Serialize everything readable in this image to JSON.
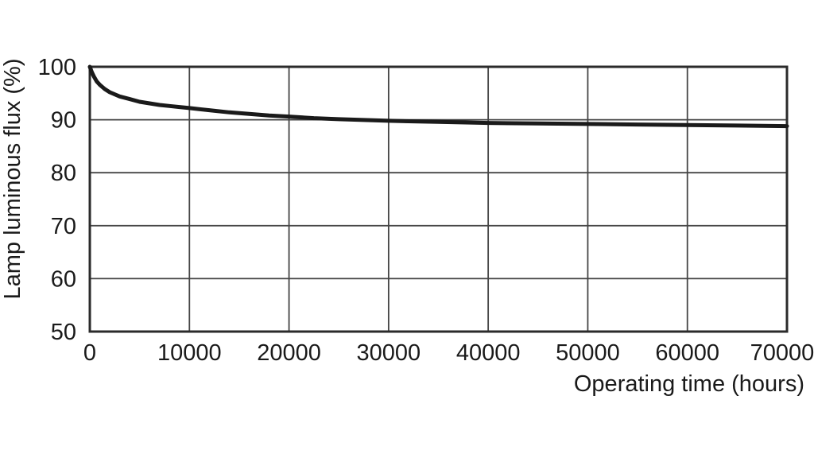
{
  "chart_data": {
    "type": "line",
    "title": "",
    "xlabel": "Operating time (hours)",
    "ylabel": "Lamp luminous flux (%)",
    "xlim": [
      0,
      70000
    ],
    "ylim": [
      50,
      100
    ],
    "x_ticks": [
      0,
      10000,
      20000,
      30000,
      40000,
      50000,
      60000,
      70000
    ],
    "x_tick_labels": [
      "0",
      "10000",
      "20000",
      "30000",
      "40000",
      "50000",
      "60000",
      "70000"
    ],
    "y_ticks": [
      50,
      60,
      70,
      80,
      90,
      100
    ],
    "y_tick_labels": [
      "50",
      "60",
      "70",
      "80",
      "90",
      "100"
    ],
    "grid": true,
    "legend": false,
    "series": [
      {
        "name": "Lamp luminous flux",
        "x": [
          0,
          200,
          400,
          700,
          1000,
          1500,
          2000,
          3000,
          4000,
          5000,
          6000,
          7000,
          8000,
          9000,
          10000,
          12000,
          14000,
          16000,
          18000,
          20000,
          22500,
          25000,
          27500,
          30000,
          32500,
          35000,
          40000,
          45000,
          50000,
          55000,
          60000,
          65000,
          70000
        ],
        "y": [
          100,
          99.0,
          98.2,
          97.2,
          96.6,
          95.8,
          95.2,
          94.4,
          93.9,
          93.4,
          93.1,
          92.8,
          92.6,
          92.4,
          92.2,
          91.8,
          91.4,
          91.1,
          90.8,
          90.6,
          90.3,
          90.1,
          89.95,
          89.8,
          89.7,
          89.6,
          89.4,
          89.3,
          89.2,
          89.1,
          89.0,
          88.9,
          88.8
        ]
      }
    ],
    "colors": {
      "curve": "#1a1a1a",
      "grid": "#454545",
      "border": "#2b2b2b",
      "background": "#ffffff",
      "text": "#1a1a1a"
    }
  }
}
